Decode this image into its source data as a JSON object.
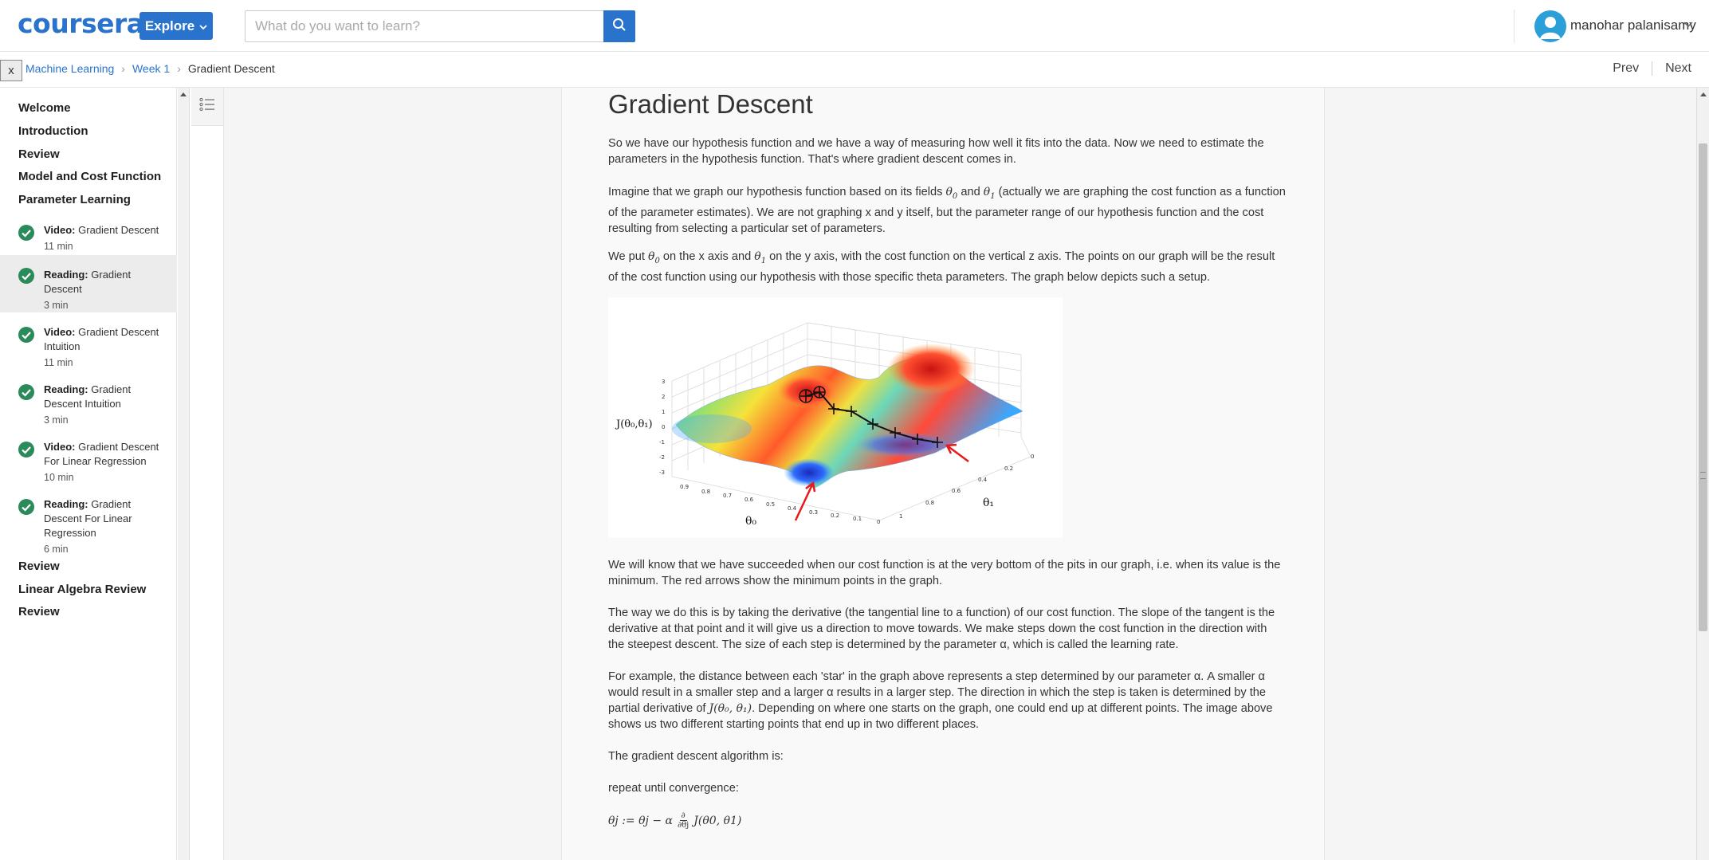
{
  "header": {
    "logo": "coursera",
    "explore_label": "Explore",
    "search_placeholder": "What do you want to learn?",
    "username": "manohar palanisamy"
  },
  "breadcrumb": {
    "course": "Machine Learning",
    "week": "Week 1",
    "current": "Gradient Descent",
    "close_label": "x"
  },
  "nav": {
    "prev": "Prev",
    "next": "Next"
  },
  "sidebar": {
    "sections_top": [
      "Welcome",
      "Introduction",
      "Review",
      "Model and Cost Function",
      "Parameter Learning"
    ],
    "items": [
      {
        "type": "Video:",
        "title": "Gradient Descent",
        "duration": "11 min"
      },
      {
        "type": "Reading:",
        "title": "Gradient Descent",
        "duration": "3 min"
      },
      {
        "type": "Video:",
        "title": "Gradient Descent Intuition",
        "duration": "11 min"
      },
      {
        "type": "Reading:",
        "title": "Gradient Descent Intuition",
        "duration": "3 min"
      },
      {
        "type": "Video:",
        "title": "Gradient Descent For Linear Regression",
        "duration": "10 min"
      },
      {
        "type": "Reading:",
        "title": "Gradient Descent For Linear Regression",
        "duration": "6 min"
      }
    ],
    "sections_bottom": [
      "Review",
      "Linear Algebra Review",
      "Review"
    ]
  },
  "article": {
    "title": "Gradient Descent",
    "p1": "So we have our hypothesis function and we have a way of measuring how well it fits into the data. Now we need to estimate the parameters in the hypothesis function. That's where gradient descent comes in.",
    "p2_a": "Imagine that we graph our hypothesis function based on its fields ",
    "p2_b": " and ",
    "p2_c": " (actually we are graphing the cost function as a function of the parameter estimates). We are not graphing x and y itself, but the parameter range of our hypothesis function and the cost resulting from selecting a particular set of parameters.",
    "p3_a": "We put ",
    "p3_b": " on the x axis and ",
    "p3_c": " on the y axis, with the cost function on the vertical z axis. The points on our graph will be the result of the cost function using our hypothesis with those specific theta parameters. The graph below depicts such a setup.",
    "p4": "We will know that we have succeeded when our cost function is at the very bottom of the pits in our graph, i.e. when its value is the minimum. The red arrows show the minimum points in the graph.",
    "p5": "The way we do this is by taking the derivative (the tangential line to a function) of our cost function. The slope of the tangent is the derivative at that point and it will give us a direction to move towards. We make steps down the cost function in the direction with the steepest descent. The size of each step is determined by the parameter α, which is called the learning rate.",
    "p6_a": "For example, the distance between each 'star' in the graph above represents a step determined by our parameter α. A smaller α would result in a smaller step and a larger α results in a larger step. The direction in which the step is taken is determined by the partial derivative of ",
    "p6_b": ". Depending on where one starts on the graph, one could end up at different points. The image above shows us two different starting points that end up in two different places.",
    "p7": "The gradient descent algorithm is:",
    "p8": "repeat until convergence:",
    "theta0": "θ",
    "sub0": "0",
    "sub1": "1",
    "j_expr": "J(θ₀, θ₁)"
  },
  "figure": {
    "zlabel": "J(θ₀,θ₁)",
    "xlabel": "θ₀",
    "ylabel": "θ₁",
    "z_ticks": [
      "3",
      "2",
      "1",
      "0",
      "-1",
      "-2",
      "-3"
    ],
    "x_ticks": [
      "0.9",
      "0.8",
      "0.7",
      "0.6",
      "0.5",
      "0.4",
      "0.3",
      "0.2",
      "0.1",
      "0"
    ],
    "y_ticks": [
      "0",
      "0.2",
      "0.4",
      "0.6",
      "0.8",
      "1"
    ]
  },
  "formula": {
    "lhs": "θj := θj − α",
    "num": "∂",
    "den": "∂θj",
    "rhs": "J(θ0, θ1)"
  }
}
